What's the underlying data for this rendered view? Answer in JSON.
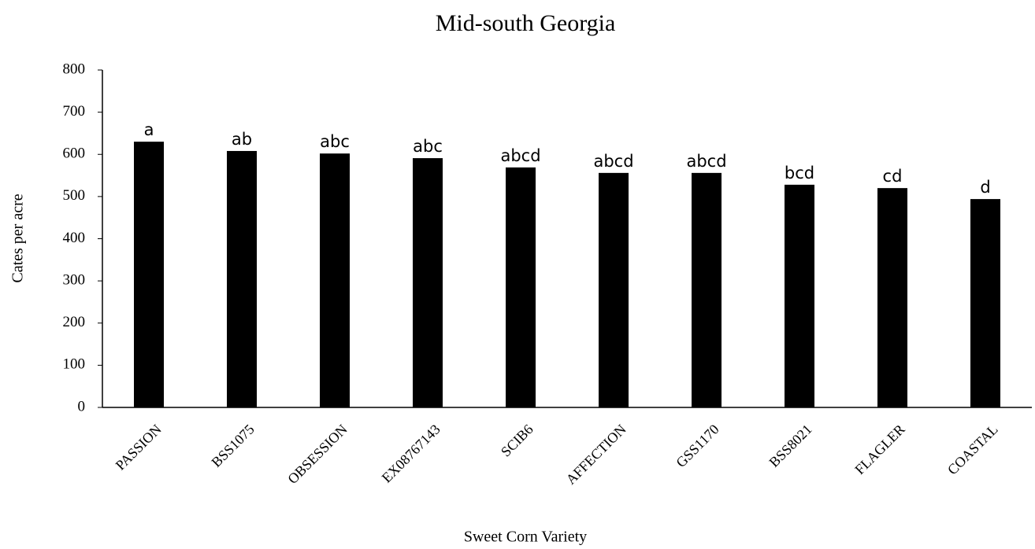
{
  "chart_data": {
    "type": "bar",
    "title": "Mid-south Georgia",
    "x_label": "Sweet Corn Variety",
    "y_label": "Cates per acre",
    "categories": [
      "PASSION",
      "BSS1075",
      "OBSESSION",
      "EX08767143",
      "SCIB6",
      "AFFECTION",
      "GSS1170",
      "BSS8021",
      "FLAGLER",
      "COASTAL"
    ],
    "values": [
      630,
      608,
      602,
      591,
      569,
      556,
      556,
      528,
      520,
      494
    ],
    "annotations": [
      "a",
      "ab",
      "abc",
      "abc",
      "abcd",
      "abcd",
      "abcd",
      "bcd",
      "cd",
      "d"
    ],
    "color": "#000000",
    "ylim": [
      0,
      800
    ],
    "yticks": [
      0,
      100,
      200,
      300,
      400,
      500,
      600,
      700,
      800
    ],
    "grid": false
  }
}
